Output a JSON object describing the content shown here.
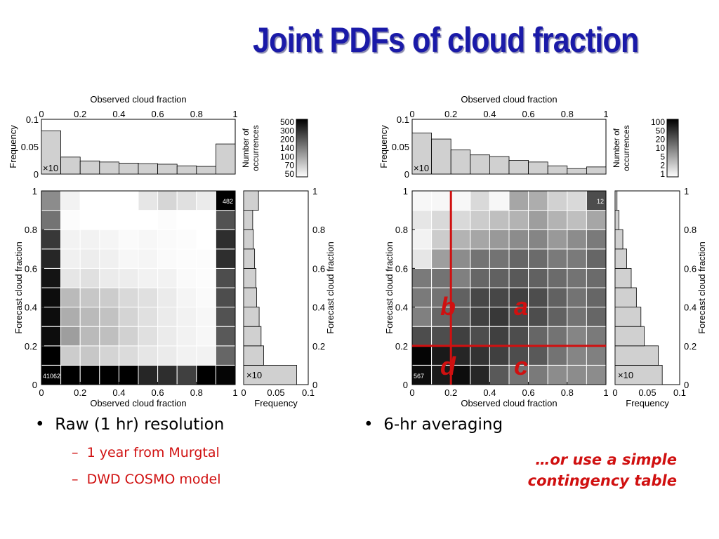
{
  "slide": {
    "title": "Joint PDFs of cloud fraction",
    "left_bullet": "Raw (1 hr) resolution",
    "left_sub": [
      "1 year from Murgtal",
      "DWD COSMO model"
    ],
    "right_bullet": "6-hr averaging",
    "right_note_lines": [
      "…or use a simple",
      "contingency table"
    ],
    "bullet_symbol": "•",
    "dash_symbol": "–",
    "colors": {
      "title": "#1a1aa8",
      "accent": "#d01010"
    }
  },
  "chart_data": [
    {
      "type": "heatmap",
      "title": "",
      "xlabel": "Observed cloud fraction",
      "ylabel": "Forecast cloud fraction",
      "xlim": [
        0,
        1
      ],
      "ylim": [
        0,
        1
      ],
      "ticks": [
        "0",
        "0.2",
        "0.4",
        "0.6",
        "0.8",
        "1"
      ],
      "grid_shade_rows_bottom_to_top": [
        [
          0.0,
          0.0,
          0.0,
          0.0,
          0.0,
          0.15,
          0.18,
          0.25,
          0.0,
          0.02
        ],
        [
          0.0,
          0.8,
          0.78,
          0.83,
          0.86,
          0.9,
          0.92,
          0.95,
          0.95,
          0.4
        ],
        [
          0.05,
          0.62,
          0.73,
          0.75,
          0.82,
          0.88,
          0.92,
          0.95,
          0.97,
          0.35
        ],
        [
          0.05,
          0.68,
          0.73,
          0.76,
          0.83,
          0.88,
          0.92,
          0.95,
          0.97,
          0.32
        ],
        [
          0.05,
          0.73,
          0.78,
          0.8,
          0.85,
          0.88,
          0.92,
          0.96,
          0.98,
          0.3
        ],
        [
          0.08,
          0.9,
          0.88,
          0.92,
          0.93,
          0.95,
          0.95,
          0.98,
          0.99,
          0.3
        ],
        [
          0.15,
          0.94,
          0.93,
          0.94,
          0.97,
          0.96,
          0.98,
          0.99,
          0.99,
          0.18
        ],
        [
          0.22,
          0.95,
          0.95,
          0.96,
          0.98,
          0.97,
          0.98,
          0.99,
          1.0,
          0.18
        ],
        [
          0.45,
          0.99,
          1.0,
          1.0,
          1.0,
          1.0,
          0.99,
          1.0,
          1.0,
          0.32
        ],
        [
          0.55,
          0.95,
          1.0,
          1.0,
          1.0,
          0.9,
          0.84,
          0.88,
          0.92,
          0.0
        ]
      ],
      "corner_labels": {
        "bottom_left": "41062",
        "top_right": "482"
      },
      "top_hist": {
        "label": "Frequency",
        "ticks": [
          "0",
          "0.05",
          "0.1"
        ],
        "multiplier": "×10",
        "values": [
          0.079,
          0.031,
          0.024,
          0.022,
          0.02,
          0.019,
          0.018,
          0.015,
          0.014,
          0.055
        ]
      },
      "right_hist": {
        "label": "Frequency",
        "ticks": [
          "0",
          "0.05",
          "0.1"
        ],
        "multiplier": "×10",
        "values_bottom_to_top": [
          0.082,
          0.031,
          0.027,
          0.024,
          0.02,
          0.019,
          0.017,
          0.015,
          0.014,
          0.023
        ]
      },
      "colorbar": {
        "label_lines": [
          "Number of",
          "occurrences"
        ],
        "ticks": [
          "500",
          "300",
          "200",
          "140",
          "100",
          "70",
          "50"
        ]
      }
    },
    {
      "type": "heatmap",
      "title": "",
      "xlabel": "Observed cloud fraction",
      "ylabel": "Forecast cloud fraction",
      "xlim": [
        0,
        1
      ],
      "ylim": [
        0,
        1
      ],
      "ticks": [
        "0",
        "0.2",
        "0.4",
        "0.6",
        "0.8",
        "1"
      ],
      "grid_shade_rows_bottom_to_top": [
        [
          0.05,
          0.1,
          0.05,
          0.15,
          0.35,
          0.45,
          0.48,
          0.55,
          0.55,
          0.55
        ],
        [
          0.02,
          0.1,
          0.15,
          0.2,
          0.25,
          0.3,
          0.35,
          0.45,
          0.52,
          0.5
        ],
        [
          0.3,
          0.3,
          0.25,
          0.3,
          0.25,
          0.3,
          0.4,
          0.45,
          0.52,
          0.48
        ],
        [
          0.5,
          0.4,
          0.35,
          0.25,
          0.22,
          0.28,
          0.3,
          0.38,
          0.45,
          0.4
        ],
        [
          0.48,
          0.45,
          0.38,
          0.28,
          0.28,
          0.25,
          0.3,
          0.38,
          0.45,
          0.4
        ],
        [
          0.48,
          0.45,
          0.5,
          0.4,
          0.38,
          0.35,
          0.38,
          0.42,
          0.45,
          0.42
        ],
        [
          0.9,
          0.62,
          0.55,
          0.45,
          0.45,
          0.4,
          0.42,
          0.48,
          0.48,
          0.4
        ],
        [
          0.95,
          0.8,
          0.7,
          0.65,
          0.6,
          0.55,
          0.52,
          0.6,
          0.55,
          0.48
        ],
        [
          0.9,
          0.85,
          0.85,
          0.8,
          0.75,
          0.7,
          0.62,
          0.7,
          0.75,
          0.65
        ],
        [
          0.97,
          0.97,
          0.97,
          0.85,
          0.97,
          0.65,
          0.68,
          0.82,
          0.85,
          0.3
        ]
      ],
      "corner_labels": {
        "bottom_left": "567",
        "top_right": "12"
      },
      "top_hist": {
        "label": "Frequency",
        "ticks": [
          "0",
          "0.05",
          "0.1"
        ],
        "multiplier": "×10",
        "values": [
          0.075,
          0.064,
          0.044,
          0.035,
          0.032,
          0.025,
          0.022,
          0.015,
          0.01,
          0.013
        ]
      },
      "right_hist": {
        "label": "Frequency",
        "ticks": [
          "0",
          "0.05",
          "0.1",
          "0.1"
        ],
        "multiplier": "×10",
        "values_bottom_to_top": [
          0.073,
          0.067,
          0.045,
          0.04,
          0.033,
          0.025,
          0.018,
          0.012,
          0.006,
          0.003
        ]
      },
      "colorbar": {
        "label_lines": [
          "Number of",
          "occurrences"
        ],
        "ticks": [
          "100",
          "50",
          "20",
          "10",
          "5",
          "2",
          "1"
        ]
      },
      "contingency": {
        "threshold": 0.2,
        "quadrant_labels": {
          "a": "a",
          "b": "b",
          "c": "c",
          "d": "d"
        }
      }
    }
  ]
}
